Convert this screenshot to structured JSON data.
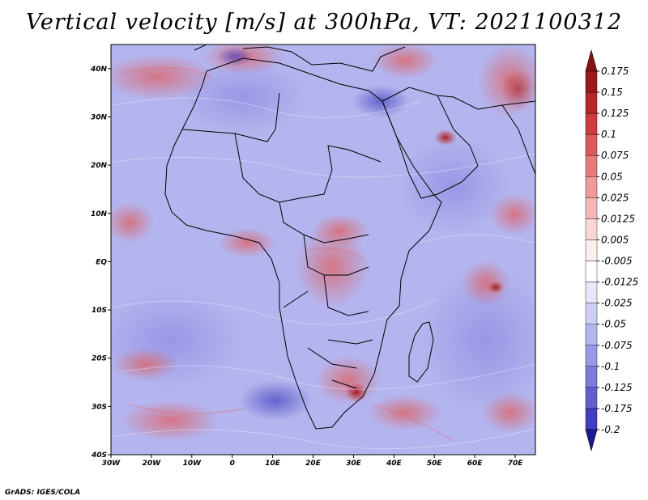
{
  "title": "Vertical velocity [m/s] at 300hPa, VT: 2021100312",
  "footer": "GrADS: IGES/COLA",
  "map": {
    "region": "Africa and Middle East",
    "field": "vertical velocity",
    "units": "m/s",
    "level": "300hPa",
    "lon_range": [
      -30,
      75
    ],
    "lat_range": [
      -40,
      45
    ],
    "lon_ticks": [
      {
        "value": -30,
        "label": "30W"
      },
      {
        "value": -20,
        "label": "20W"
      },
      {
        "value": -10,
        "label": "10W"
      },
      {
        "value": 0,
        "label": "0"
      },
      {
        "value": 10,
        "label": "10E"
      },
      {
        "value": 20,
        "label": "20E"
      },
      {
        "value": 30,
        "label": "30E"
      },
      {
        "value": 40,
        "label": "40E"
      },
      {
        "value": 50,
        "label": "50E"
      },
      {
        "value": 60,
        "label": "60E"
      },
      {
        "value": 70,
        "label": "70E"
      }
    ],
    "lat_ticks": [
      {
        "value": 40,
        "label": "40N"
      },
      {
        "value": 30,
        "label": "30N"
      },
      {
        "value": 20,
        "label": "20N"
      },
      {
        "value": 10,
        "label": "10N"
      },
      {
        "value": 0,
        "label": "EQ"
      },
      {
        "value": -10,
        "label": "10S"
      },
      {
        "value": -20,
        "label": "20S"
      },
      {
        "value": -30,
        "label": "30S"
      },
      {
        "value": -40,
        "label": "40S"
      }
    ],
    "features": [
      {
        "name": "ascent-persian-gulf",
        "lon": 56,
        "lat": 25,
        "value": 0.15
      },
      {
        "name": "ascent-congo-basin",
        "lon": 25,
        "lat": -3,
        "value": 0.075
      },
      {
        "name": "ascent-gulf-of-guinea",
        "lon": 2,
        "lat": 3,
        "value": 0.075
      },
      {
        "name": "ascent-southern-africa",
        "lon": 30,
        "lat": -27,
        "value": 0.1
      },
      {
        "name": "ascent-indian-ocean",
        "lon": 65,
        "lat": -5,
        "value": 0.075
      },
      {
        "name": "descent-south-atlantic",
        "lon": 10,
        "lat": -30,
        "value": -0.125
      }
    ]
  },
  "colorbar": {
    "levels": [
      {
        "label": "0.175",
        "color": "#9d1a1a"
      },
      {
        "label": "0.15",
        "color": "#b62828"
      },
      {
        "label": "0.125",
        "color": "#cd3d3d"
      },
      {
        "label": "0.1",
        "color": "#dc5a5a"
      },
      {
        "label": "0.075",
        "color": "#e77a7a"
      },
      {
        "label": "0.05",
        "color": "#ef9999"
      },
      {
        "label": "0.025",
        "color": "#f5b8b8"
      },
      {
        "label": "0.0125",
        "color": "#fad6d6"
      },
      {
        "label": "0.005",
        "color": "#fdeeee"
      },
      {
        "label": "-0.005",
        "color": "#ffffff"
      },
      {
        "label": "-0.0125",
        "color": "#e7e7fb"
      },
      {
        "label": "-0.025",
        "color": "#cfcff6"
      },
      {
        "label": "-0.05",
        "color": "#b5b5f0"
      },
      {
        "label": "-0.075",
        "color": "#9999e8"
      },
      {
        "label": "-0.1",
        "color": "#7c7cdd"
      },
      {
        "label": "-0.125",
        "color": "#5f5fd0"
      },
      {
        "label": "-0.175",
        "color": "#4040bf"
      },
      {
        "label": "-0.2",
        "color": "#2a2aa8"
      }
    ],
    "top_color": "#8a1010",
    "bottom_color": "#1a1a96"
  }
}
